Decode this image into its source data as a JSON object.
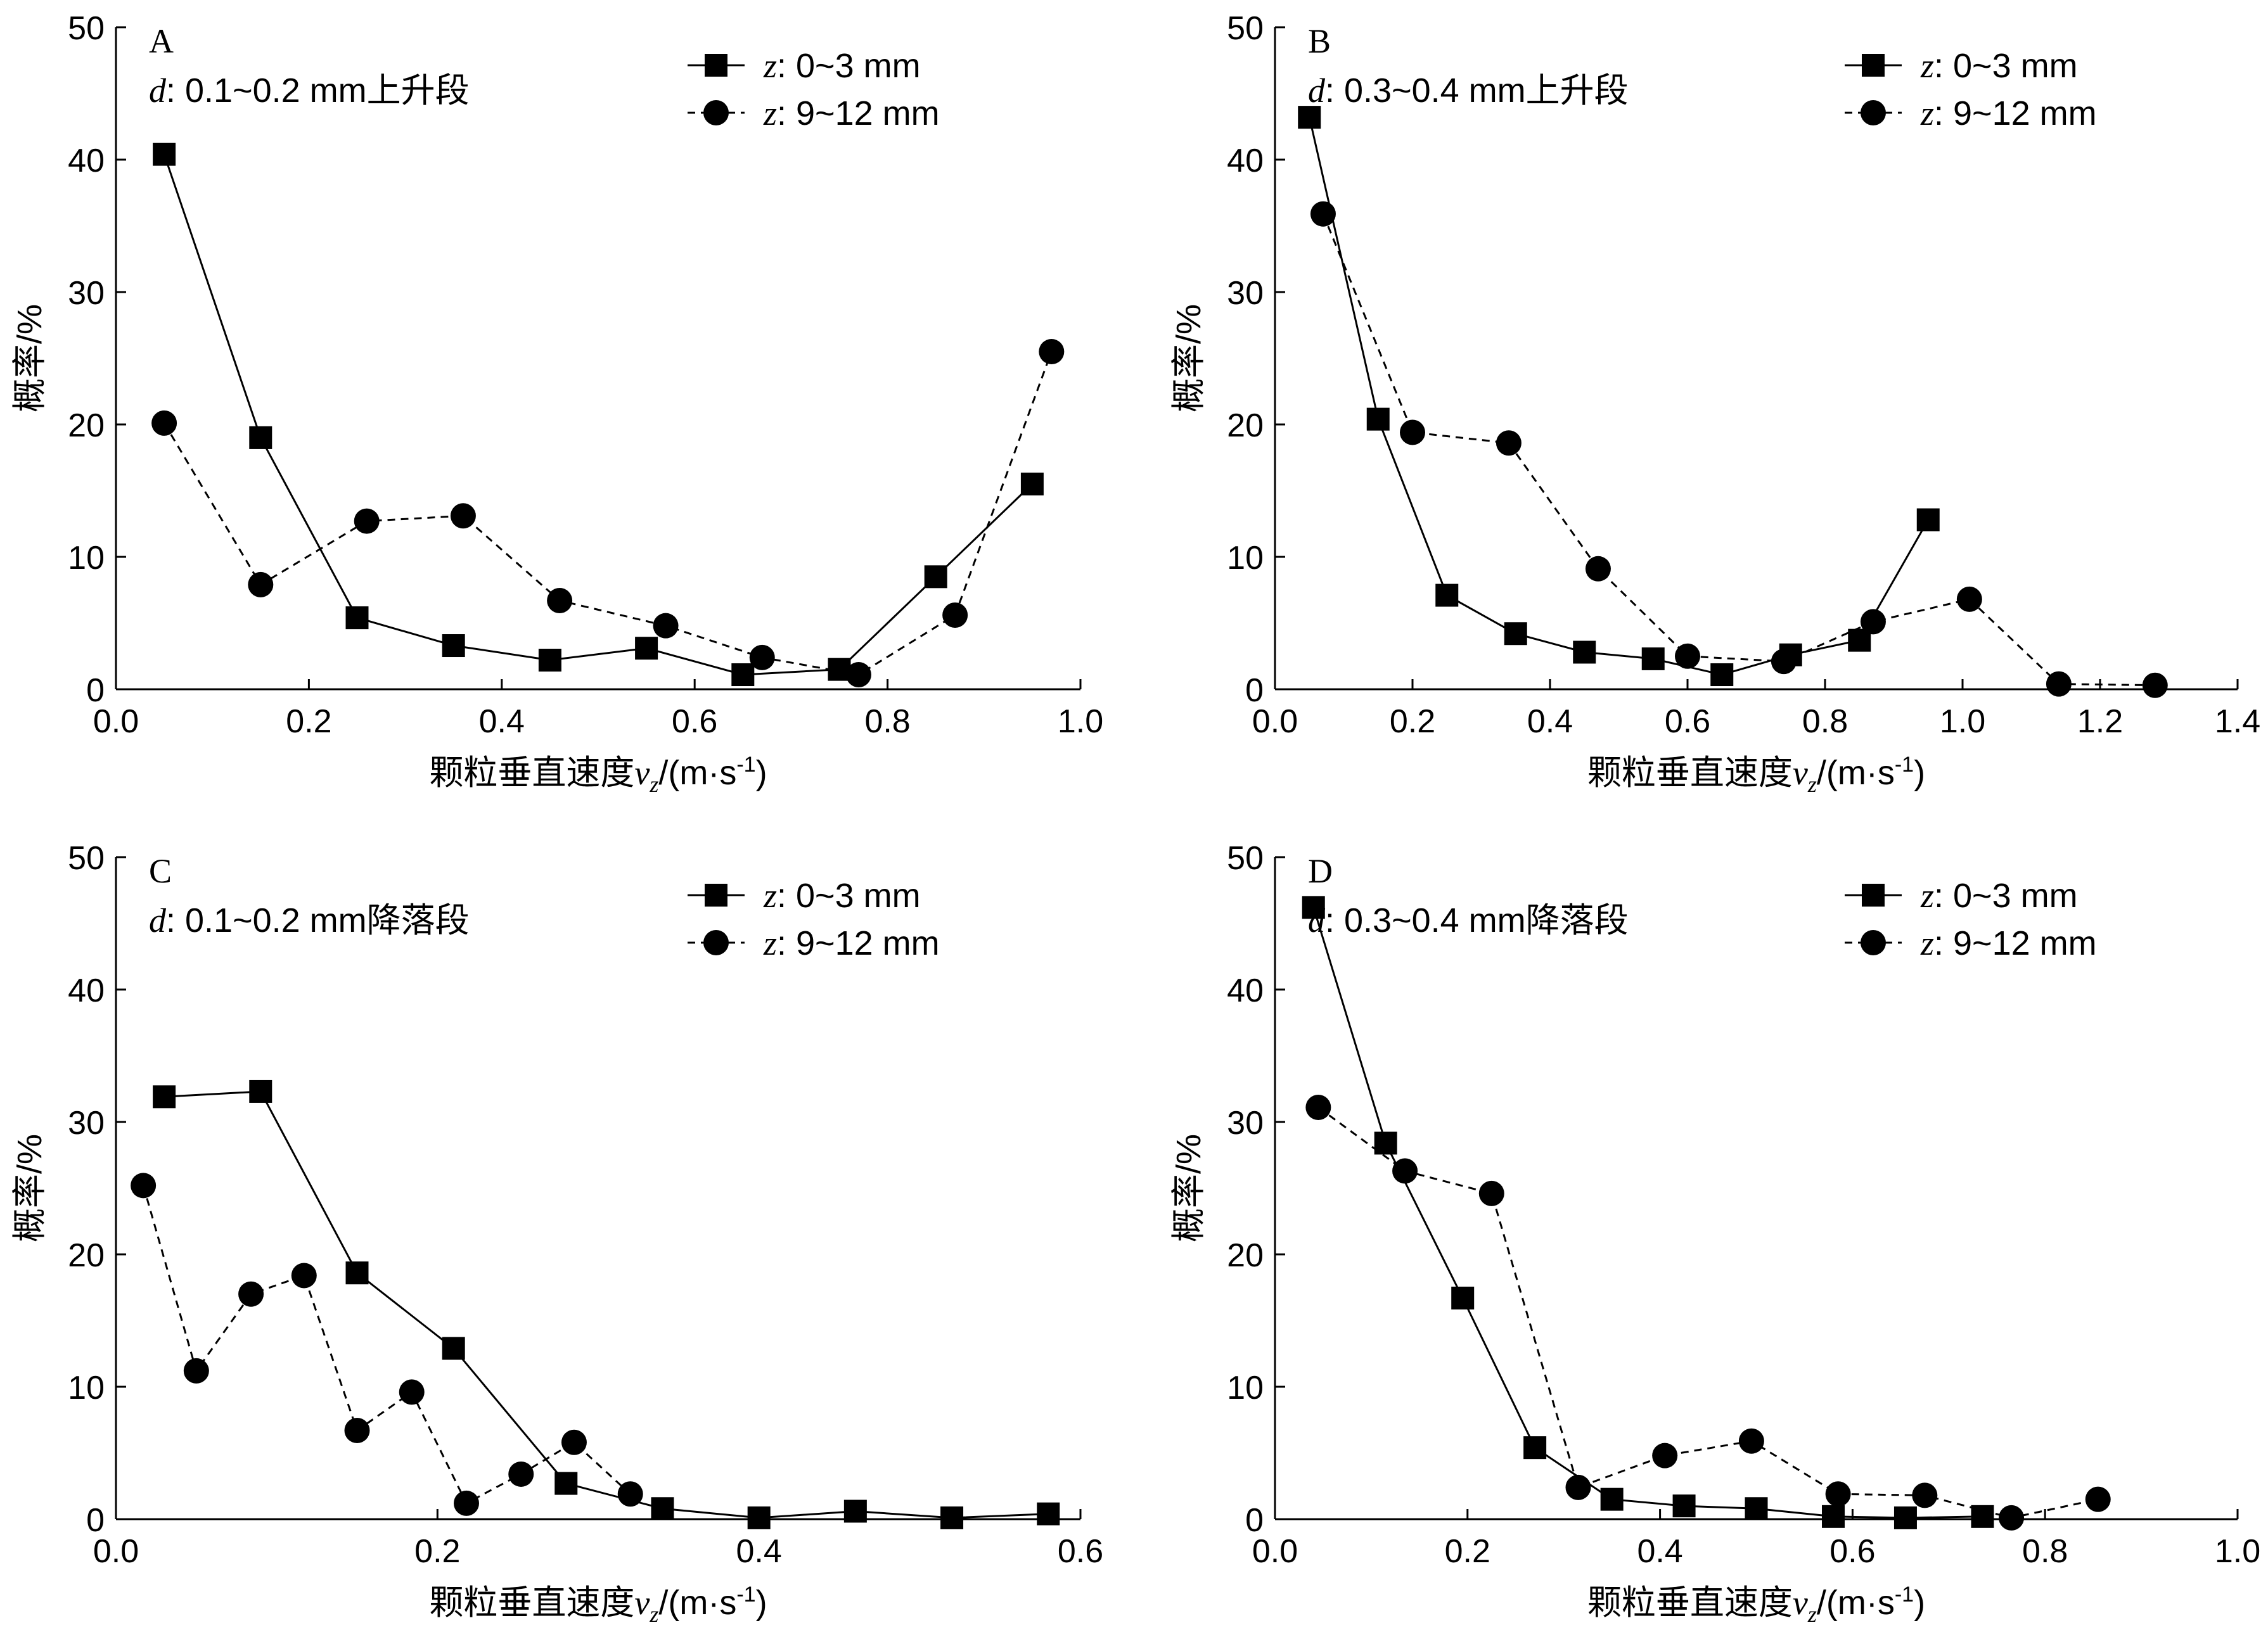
{
  "chart_data": [
    {
      "panel": "A",
      "type": "line",
      "annotation": "d: 0.1~0.2 mm上升段",
      "ylabel": "概率/%",
      "xlabel": "颗粒垂直速度vz/(m·s-1)",
      "xlim": [
        0,
        1.0
      ],
      "ylim": [
        0,
        50
      ],
      "xticks": [
        0.0,
        0.2,
        0.4,
        0.6,
        0.8,
        1.0
      ],
      "xtick_labels": [
        "0.0",
        "0.2",
        "0.4",
        "0.6",
        "0.8",
        "1.0"
      ],
      "yticks": [
        0,
        10,
        20,
        30,
        40,
        50
      ],
      "legend_position": "top-right",
      "series": [
        {
          "name": "z: 0~3 mm",
          "marker": "square",
          "line": "solid",
          "x": [
            0.05,
            0.15,
            0.25,
            0.35,
            0.45,
            0.55,
            0.65,
            0.75,
            0.85,
            0.95
          ],
          "y": [
            40.4,
            19.0,
            5.4,
            3.3,
            2.2,
            3.1,
            1.1,
            1.5,
            8.5,
            15.5
          ]
        },
        {
          "name": "z: 9~12 mm",
          "marker": "circle",
          "line": "dashed",
          "x": [
            0.05,
            0.15,
            0.26,
            0.36,
            0.46,
            0.57,
            0.67,
            0.77,
            0.87,
            0.97
          ],
          "y": [
            20.1,
            7.9,
            12.7,
            13.1,
            6.7,
            4.8,
            2.4,
            1.1,
            5.6,
            25.5
          ]
        }
      ]
    },
    {
      "panel": "B",
      "type": "line",
      "annotation": "d: 0.3~0.4 mm上升段",
      "ylabel": "概率/%",
      "xlabel": "颗粒垂直速度vz/(m·s-1)",
      "xlim": [
        0,
        1.4
      ],
      "ylim": [
        0,
        50
      ],
      "xticks": [
        0.0,
        0.2,
        0.4,
        0.6,
        0.8,
        1.0,
        1.2,
        1.4
      ],
      "xtick_labels": [
        "0.0",
        "0.2",
        "0.4",
        "0.6",
        "0.8",
        "1.0",
        "1.2",
        "1.4"
      ],
      "yticks": [
        0,
        10,
        20,
        30,
        40,
        50
      ],
      "legend_position": "top-right",
      "series": [
        {
          "name": "z: 0~3 mm",
          "marker": "square",
          "line": "solid",
          "x": [
            0.05,
            0.15,
            0.25,
            0.35,
            0.45,
            0.55,
            0.65,
            0.75,
            0.85,
            0.95
          ],
          "y": [
            43.2,
            20.4,
            7.1,
            4.2,
            2.8,
            2.3,
            1.1,
            2.6,
            3.7,
            12.8
          ]
        },
        {
          "name": "z: 9~12 mm",
          "marker": "circle",
          "line": "dashed",
          "x": [
            0.07,
            0.2,
            0.34,
            0.47,
            0.6,
            0.74,
            0.87,
            1.01,
            1.14,
            1.28
          ],
          "y": [
            35.9,
            19.4,
            18.6,
            9.1,
            2.5,
            2.1,
            5.1,
            6.8,
            0.4,
            0.3
          ]
        }
      ]
    },
    {
      "panel": "C",
      "type": "line",
      "annotation": "d: 0.1~0.2 mm降落段",
      "ylabel": "概率/%",
      "xlabel": "颗粒垂直速度vz/(m·s-1)",
      "xlim": [
        0,
        0.6
      ],
      "ylim": [
        0,
        50
      ],
      "xticks": [
        0.0,
        0.2,
        0.4,
        0.6
      ],
      "xtick_labels": [
        "0.0",
        "0.2",
        "0.4",
        "0.6"
      ],
      "yticks": [
        0,
        10,
        20,
        30,
        40,
        50
      ],
      "legend_position": "top-right",
      "series": [
        {
          "name": "z: 0~3 mm",
          "marker": "square",
          "line": "solid",
          "x": [
            0.03,
            0.09,
            0.15,
            0.21,
            0.28,
            0.34,
            0.4,
            0.46,
            0.52,
            0.58
          ],
          "y": [
            31.9,
            32.3,
            18.6,
            12.9,
            2.7,
            0.8,
            0.1,
            0.6,
            0.1,
            0.4
          ]
        },
        {
          "name": "z: 9~12 mm",
          "marker": "circle",
          "line": "dashed",
          "x": [
            0.017,
            0.05,
            0.084,
            0.117,
            0.15,
            0.184,
            0.218,
            0.252,
            0.285,
            0.32
          ],
          "y": [
            25.2,
            11.2,
            17.0,
            18.4,
            6.7,
            9.6,
            1.2,
            3.4,
            5.8,
            1.9
          ]
        }
      ]
    },
    {
      "panel": "D",
      "type": "line",
      "annotation": "d: 0.3~0.4 mm降落段",
      "ylabel": "概率/%",
      "xlabel": "颗粒垂直速度vz/(m·s-1)",
      "xlim": [
        0,
        1.0
      ],
      "ylim": [
        0,
        50
      ],
      "xticks": [
        0.0,
        0.2,
        0.4,
        0.6,
        0.8,
        1.0
      ],
      "xtick_labels": [
        "0.0",
        "0.2",
        "0.4",
        "0.6",
        "0.8",
        "1.0"
      ],
      "yticks": [
        0,
        10,
        20,
        30,
        40,
        50
      ],
      "legend_position": "top-right",
      "series": [
        {
          "name": "z: 0~3 mm",
          "marker": "square",
          "line": "solid",
          "x": [
            0.04,
            0.115,
            0.195,
            0.27,
            0.35,
            0.425,
            0.5,
            0.58,
            0.655,
            0.735
          ],
          "y": [
            46.2,
            28.4,
            16.7,
            5.4,
            1.5,
            1.0,
            0.8,
            0.2,
            0.1,
            0.2
          ]
        },
        {
          "name": "z: 9~12 mm",
          "marker": "circle",
          "line": "dashed",
          "x": [
            0.045,
            0.135,
            0.225,
            0.315,
            0.405,
            0.495,
            0.585,
            0.675,
            0.765,
            0.855
          ],
          "y": [
            31.1,
            26.3,
            24.6,
            2.4,
            4.8,
            5.9,
            1.9,
            1.8,
            0.1,
            1.5
          ]
        }
      ]
    }
  ]
}
